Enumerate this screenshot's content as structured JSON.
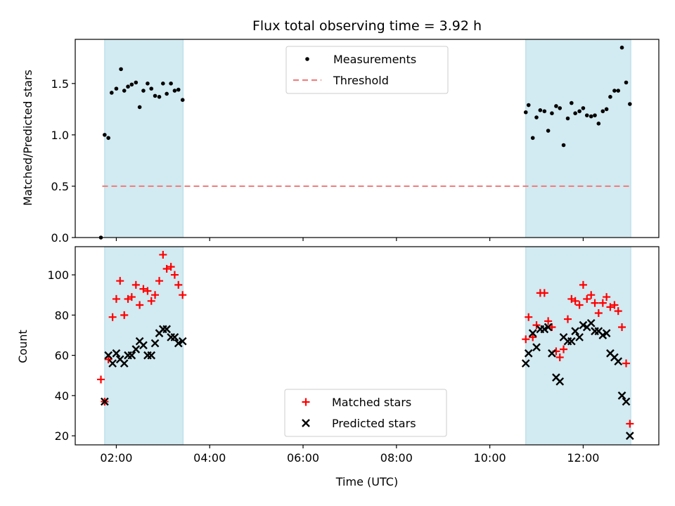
{
  "chart_data": [
    {
      "type": "scatter",
      "title": "Flux total observing time = 3.92 h",
      "xlabel": "",
      "ylabel": "Matched/Predicted stars",
      "ylim": [
        0,
        1.93
      ],
      "yticks": [
        "0.0",
        "0.5",
        "1.0",
        "1.5"
      ],
      "xlim": [
        1.12,
        13.62
      ],
      "shaded_intervals": [
        [
          1.75,
          3.43
        ],
        [
          10.77,
          13.02
        ]
      ],
      "shade_color": "#add8e6",
      "legend": {
        "position": "top-center",
        "items": [
          "Measurements",
          "Threshold"
        ]
      },
      "threshold": {
        "name": "Threshold",
        "value": 0.5,
        "from": 1.7,
        "to": 13.02,
        "color": "#f08080"
      },
      "series": [
        {
          "name": "Measurements",
          "color": "#000000",
          "marker": "dot",
          "x": [
            1.67,
            1.75,
            1.83,
            1.9,
            2.0,
            2.1,
            2.17,
            2.25,
            2.33,
            2.42,
            2.5,
            2.58,
            2.67,
            2.75,
            2.83,
            2.92,
            3.0,
            3.08,
            3.17,
            3.25,
            3.33,
            3.42,
            10.77,
            10.83,
            10.92,
            11.0,
            11.08,
            11.17,
            11.25,
            11.33,
            11.42,
            11.5,
            11.58,
            11.67,
            11.75,
            11.83,
            11.92,
            12.0,
            12.08,
            12.17,
            12.25,
            12.33,
            12.42,
            12.5,
            12.58,
            12.67,
            12.75,
            12.83,
            12.92,
            13.0
          ],
          "y": [
            0.0,
            1.0,
            0.97,
            1.41,
            1.45,
            1.64,
            1.43,
            1.47,
            1.49,
            1.51,
            1.27,
            1.43,
            1.5,
            1.45,
            1.38,
            1.37,
            1.5,
            1.4,
            1.5,
            1.43,
            1.44,
            1.34,
            1.22,
            1.29,
            0.97,
            1.17,
            1.24,
            1.23,
            1.04,
            1.21,
            1.28,
            1.26,
            0.9,
            1.16,
            1.31,
            1.21,
            1.23,
            1.26,
            1.19,
            1.18,
            1.19,
            1.11,
            1.23,
            1.25,
            1.37,
            1.43,
            1.43,
            1.85,
            1.51,
            1.3
          ]
        }
      ],
      "grid": false
    },
    {
      "type": "scatter",
      "title": "",
      "xlabel": "Time (UTC)",
      "ylabel": "Count",
      "ylim": [
        15.5,
        114
      ],
      "yticks": [
        "20",
        "40",
        "60",
        "80",
        "100"
      ],
      "xlim": [
        1.12,
        13.62
      ],
      "xticks": [
        "02:00",
        "04:00",
        "06:00",
        "08:00",
        "10:00",
        "12:00"
      ],
      "shaded_intervals": [
        [
          1.75,
          3.43
        ],
        [
          10.77,
          13.02
        ]
      ],
      "shade_color": "#add8e6",
      "legend": {
        "position": "bottom-center",
        "items": [
          "Matched stars",
          "Predicted stars"
        ]
      },
      "series": [
        {
          "name": "Matched stars",
          "color": "#ff0000",
          "marker": "plus",
          "x": [
            1.67,
            1.75,
            1.83,
            1.92,
            2.0,
            2.08,
            2.17,
            2.25,
            2.33,
            2.42,
            2.5,
            2.58,
            2.67,
            2.75,
            2.83,
            2.92,
            3.0,
            3.08,
            3.17,
            3.25,
            3.33,
            3.42,
            10.77,
            10.83,
            10.92,
            11.0,
            11.08,
            11.17,
            11.25,
            11.33,
            11.42,
            11.5,
            11.58,
            11.67,
            11.75,
            11.83,
            11.92,
            12.0,
            12.08,
            12.17,
            12.25,
            12.33,
            12.42,
            12.5,
            12.58,
            12.67,
            12.75,
            12.83,
            12.92,
            13.0
          ],
          "y": [
            48,
            37,
            58,
            79,
            88,
            97,
            80,
            88,
            89,
            95,
            85,
            93,
            92,
            87,
            90,
            97,
            110,
            103,
            104,
            100,
            95,
            90,
            68,
            79,
            69,
            75,
            91,
            91,
            77,
            74,
            62,
            59,
            63,
            78,
            88,
            87,
            85,
            95,
            88,
            90,
            86,
            81,
            86,
            89,
            84,
            85,
            82,
            74,
            56,
            26
          ]
        },
        {
          "name": "Predicted stars",
          "color": "#000000",
          "marker": "x",
          "x": [
            1.75,
            1.83,
            1.92,
            2.0,
            2.08,
            2.17,
            2.25,
            2.33,
            2.42,
            2.5,
            2.58,
            2.67,
            2.75,
            2.83,
            2.92,
            3.0,
            3.08,
            3.17,
            3.25,
            3.33,
            3.42,
            10.77,
            10.83,
            10.92,
            11.0,
            11.08,
            11.17,
            11.25,
            11.33,
            11.42,
            11.5,
            11.58,
            11.67,
            11.75,
            11.83,
            11.92,
            12.0,
            12.08,
            12.17,
            12.25,
            12.33,
            12.42,
            12.5,
            12.58,
            12.67,
            12.75,
            12.83,
            12.92,
            13.0
          ],
          "y": [
            37,
            60,
            56,
            61,
            58,
            56,
            60,
            60,
            63,
            67,
            65,
            60,
            60,
            66,
            71,
            73,
            73,
            69,
            69,
            66,
            67,
            56,
            61,
            71,
            64,
            73,
            73,
            74,
            61,
            49,
            47,
            69,
            67,
            67,
            72,
            69,
            75,
            74,
            76,
            72,
            72,
            70,
            71,
            61,
            59,
            57,
            40,
            37,
            20
          ]
        }
      ],
      "grid": false
    }
  ]
}
